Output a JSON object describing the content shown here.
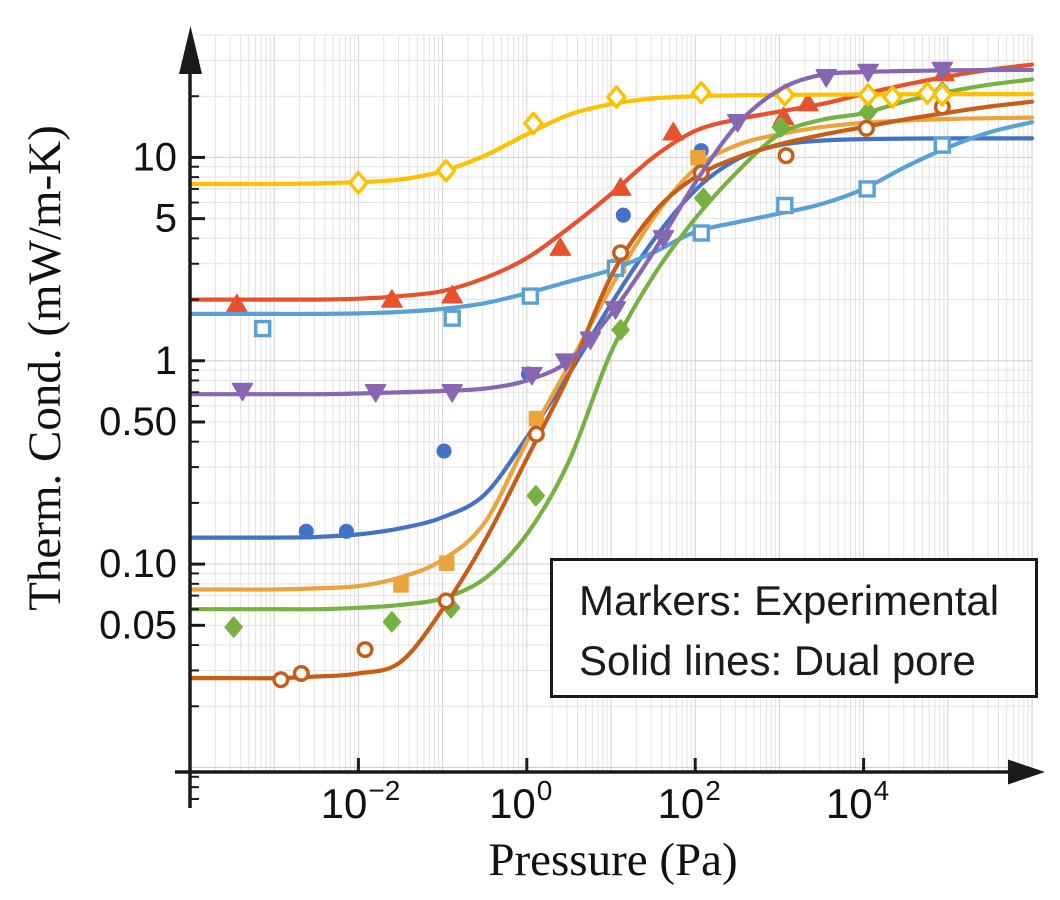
{
  "chart_data": {
    "type": "line",
    "title": "",
    "xlabel": "Pressure (Pa)",
    "ylabel": "Therm. Cond. (mW/m-K)",
    "x_scale": "log",
    "y_scale": "log",
    "xlim": [
      0.0001,
      1000000
    ],
    "ylim": [
      0.0095,
      40
    ],
    "grid": "log major+minor, light gray, both axes",
    "annotations": [
      "Markers: Experimental",
      "Solid lines: Dual pore"
    ],
    "x_ticks": [
      {
        "value": 0.01,
        "base": "10",
        "exp": "−2"
      },
      {
        "value": 1,
        "base": "10",
        "exp": "0"
      },
      {
        "value": 100,
        "base": "10",
        "exp": "2"
      },
      {
        "value": 10000,
        "base": "10",
        "exp": "4"
      }
    ],
    "y_ticks": [
      {
        "value": 10,
        "label": "10"
      },
      {
        "value": 5,
        "label": "5"
      },
      {
        "value": 1,
        "label": "1"
      },
      {
        "value": 0.5,
        "label": "0.50"
      },
      {
        "value": 0.1,
        "label": "0.10"
      },
      {
        "value": 0.05,
        "label": "0.05"
      }
    ],
    "curve_logp_start": -4,
    "curve_logp_step": 0.5,
    "series": [
      {
        "id": "red-filled-triangles",
        "color": "#E7512B",
        "marker": "triangle-up",
        "fill": "solid",
        "curve_k": [
          2.0,
          2.0,
          2.0,
          2.0,
          2.02,
          2.08,
          2.2,
          2.55,
          3.2,
          4.5,
          6.6,
          10.0,
          13.5,
          15.4,
          16.8,
          18.3,
          20.5,
          22.8,
          25.0,
          27.0,
          28.6
        ],
        "points": [
          [
            0.00036,
            1.9
          ],
          [
            0.025,
            2.0
          ],
          [
            0.13,
            2.1
          ],
          [
            2.5,
            3.6
          ],
          [
            13,
            7.1
          ],
          [
            55,
            13.3
          ],
          [
            1120,
            15.8
          ],
          [
            2180,
            18.5
          ],
          [
            90000,
            26.0
          ]
        ]
      },
      {
        "id": "darkblue-filled-circles",
        "color": "#4472C4",
        "marker": "circle",
        "fill": "solid",
        "curve_k": [
          0.135,
          0.135,
          0.135,
          0.136,
          0.14,
          0.15,
          0.17,
          0.22,
          0.42,
          0.86,
          1.9,
          3.9,
          6.9,
          9.8,
          11.5,
          12.1,
          12.3,
          12.38,
          12.4,
          12.4,
          12.4
        ],
        "points": [
          [
            0.0024,
            0.145
          ],
          [
            0.0072,
            0.145
          ],
          [
            0.104,
            0.36
          ],
          [
            1.05,
            0.86
          ],
          [
            14,
            5.2
          ],
          [
            118,
            10.8
          ]
        ]
      },
      {
        "id": "goldenrod-filled-squares",
        "color": "#EBA33B",
        "marker": "square",
        "fill": "solid",
        "curve_k": [
          0.075,
          0.075,
          0.075,
          0.076,
          0.078,
          0.086,
          0.105,
          0.16,
          0.4,
          0.95,
          2.3,
          5.0,
          8.8,
          11.5,
          13.0,
          14.1,
          14.8,
          15.2,
          15.45,
          15.6,
          15.7
        ],
        "points": [
          [
            0.032,
            0.079
          ],
          [
            0.112,
            0.101
          ],
          [
            1.3,
            0.52
          ],
          [
            12.3,
            2.92
          ],
          [
            108,
            9.96
          ]
        ]
      },
      {
        "id": "lightblue-open-squares",
        "color": "#58A1D6",
        "marker": "square",
        "fill": "open",
        "curve_k": [
          1.7,
          1.7,
          1.7,
          1.7,
          1.71,
          1.74,
          1.8,
          1.92,
          2.15,
          2.45,
          2.8,
          3.4,
          4.3,
          4.8,
          5.3,
          5.9,
          7.0,
          9.0,
          11.2,
          13.3,
          14.9
        ],
        "points": [
          [
            0.00073,
            1.44
          ],
          [
            0.13,
            1.62
          ],
          [
            1.1,
            2.08
          ],
          [
            11.3,
            2.85
          ],
          [
            118,
            4.25
          ],
          [
            1160,
            5.8
          ],
          [
            11000,
            7.0
          ],
          [
            86000,
            11.5
          ]
        ]
      },
      {
        "id": "green-filled-diamonds",
        "color": "#77B142",
        "marker": "diamond",
        "fill": "solid",
        "curve_k": [
          0.06,
          0.06,
          0.06,
          0.06,
          0.061,
          0.063,
          0.068,
          0.085,
          0.14,
          0.32,
          1.1,
          2.6,
          5.0,
          8.5,
          13.0,
          15.3,
          16.5,
          18.9,
          21.0,
          22.8,
          24.2
        ],
        "points": [
          [
            0.00033,
            0.049
          ],
          [
            0.025,
            0.052
          ],
          [
            0.126,
            0.061
          ],
          [
            1.28,
            0.217
          ],
          [
            13,
            1.42
          ],
          [
            125,
            6.3
          ],
          [
            1040,
            14.1
          ],
          [
            11300,
            16.7
          ],
          [
            86000,
            21.0
          ]
        ]
      },
      {
        "id": "brown-open-circles",
        "color": "#C75D17",
        "marker": "circle",
        "fill": "open",
        "curve_k": [
          0.0275,
          0.0275,
          0.0275,
          0.028,
          0.029,
          0.033,
          0.06,
          0.13,
          0.33,
          0.85,
          2.6,
          5.3,
          8.0,
          10.0,
          11.6,
          12.9,
          14.1,
          15.4,
          16.6,
          17.8,
          18.8
        ],
        "points": [
          [
            0.0012,
            0.027
          ],
          [
            0.0021,
            0.029
          ],
          [
            0.012,
            0.038
          ],
          [
            0.11,
            0.066
          ],
          [
            1.3,
            0.435
          ],
          [
            13,
            3.4
          ],
          [
            118,
            8.4
          ],
          [
            1200,
            10.2
          ],
          [
            10800,
            13.9
          ],
          [
            86000,
            17.7
          ]
        ]
      },
      {
        "id": "yellow-open-diamonds",
        "color": "#FFC000",
        "marker": "diamond",
        "fill": "open",
        "curve_k": [
          7.4,
          7.4,
          7.4,
          7.45,
          7.55,
          7.8,
          8.55,
          10.2,
          13.0,
          16.2,
          18.3,
          19.5,
          20.0,
          20.2,
          20.3,
          20.35,
          20.4,
          20.45,
          20.5,
          20.5,
          20.5
        ],
        "points": [
          [
            0.01,
            7.5
          ],
          [
            0.11,
            8.6
          ],
          [
            1.2,
            14.7
          ],
          [
            11.6,
            19.8
          ],
          [
            118,
            20.8
          ],
          [
            1160,
            20.3
          ],
          [
            11300,
            20.3
          ],
          [
            22000,
            19.8
          ],
          [
            57000,
            20.7
          ],
          [
            86000,
            20.3
          ]
        ]
      },
      {
        "id": "purple-filled-down-triangles",
        "color": "#8767B2",
        "marker": "triangle-down",
        "fill": "solid",
        "curve_k": [
          0.685,
          0.685,
          0.685,
          0.685,
          0.69,
          0.7,
          0.71,
          0.73,
          0.8,
          1.0,
          1.7,
          3.4,
          7.5,
          14.5,
          21.5,
          25.5,
          26.3,
          26.6,
          26.8,
          26.9,
          26.95
        ],
        "points": [
          [
            0.00042,
            0.71
          ],
          [
            0.016,
            0.7
          ],
          [
            0.13,
            0.7
          ],
          [
            1.15,
            0.85
          ],
          [
            2.9,
            0.99
          ],
          [
            5.7,
            1.27
          ],
          [
            11.3,
            1.79
          ],
          [
            42,
            4.0
          ],
          [
            320,
            14.9
          ],
          [
            3600,
            24.8
          ],
          [
            11300,
            26.3
          ],
          [
            86000,
            26.9
          ]
        ]
      }
    ]
  },
  "style_colors": {
    "axis": "#1a1a1a",
    "grid_major": "#cfcfcf",
    "grid_minor": "#e3e3e3",
    "text": "#111111"
  }
}
